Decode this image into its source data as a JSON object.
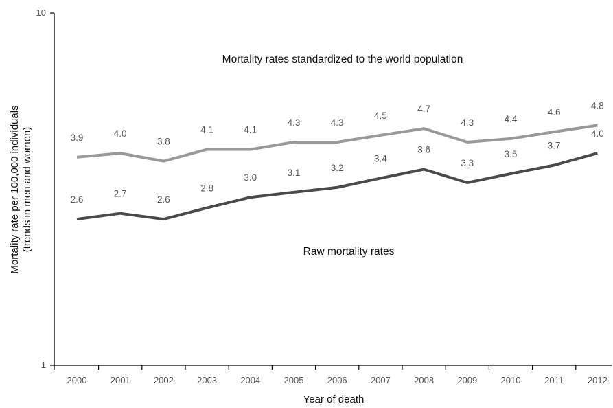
{
  "chart_data": {
    "type": "line",
    "y_scale": "log",
    "ylim": [
      1,
      10
    ],
    "y_ticks": [
      "1",
      "10"
    ],
    "categories": [
      "2000",
      "2001",
      "2002",
      "2003",
      "2004",
      "2005",
      "2006",
      "2007",
      "2008",
      "2009",
      "2010",
      "2011",
      "2012"
    ],
    "xlabel": "Year of death",
    "ylabel_line1": "Mortality rate per 100,000 individuals",
    "ylabel_line2": "(trends in men and women)",
    "grid": false,
    "series": [
      {
        "id": "standardized",
        "annotation": "Mortality rates standardized to the world population",
        "color": "#999999",
        "values": [
          3.9,
          4.0,
          3.8,
          4.1,
          4.1,
          4.3,
          4.3,
          4.5,
          4.7,
          4.3,
          4.4,
          4.6,
          4.8
        ],
        "labels": [
          "3.9",
          "4.0",
          "3.8",
          "4.1",
          "4.1",
          "4.3",
          "4.3",
          "4.5",
          "4.7",
          "4.3",
          "4.4",
          "4.6",
          "4.8"
        ]
      },
      {
        "id": "raw",
        "annotation": "Raw mortality rates",
        "color": "#4a4a4a",
        "values": [
          2.6,
          2.7,
          2.6,
          2.8,
          3.0,
          3.1,
          3.2,
          3.4,
          3.6,
          3.3,
          3.5,
          3.7,
          4.0
        ],
        "labels": [
          "2.6",
          "2.7",
          "2.6",
          "2.8",
          "3.0",
          "3.1",
          "3.2",
          "3.4",
          "3.6",
          "3.3",
          "3.5",
          "3.7",
          "4.0"
        ]
      }
    ]
  }
}
